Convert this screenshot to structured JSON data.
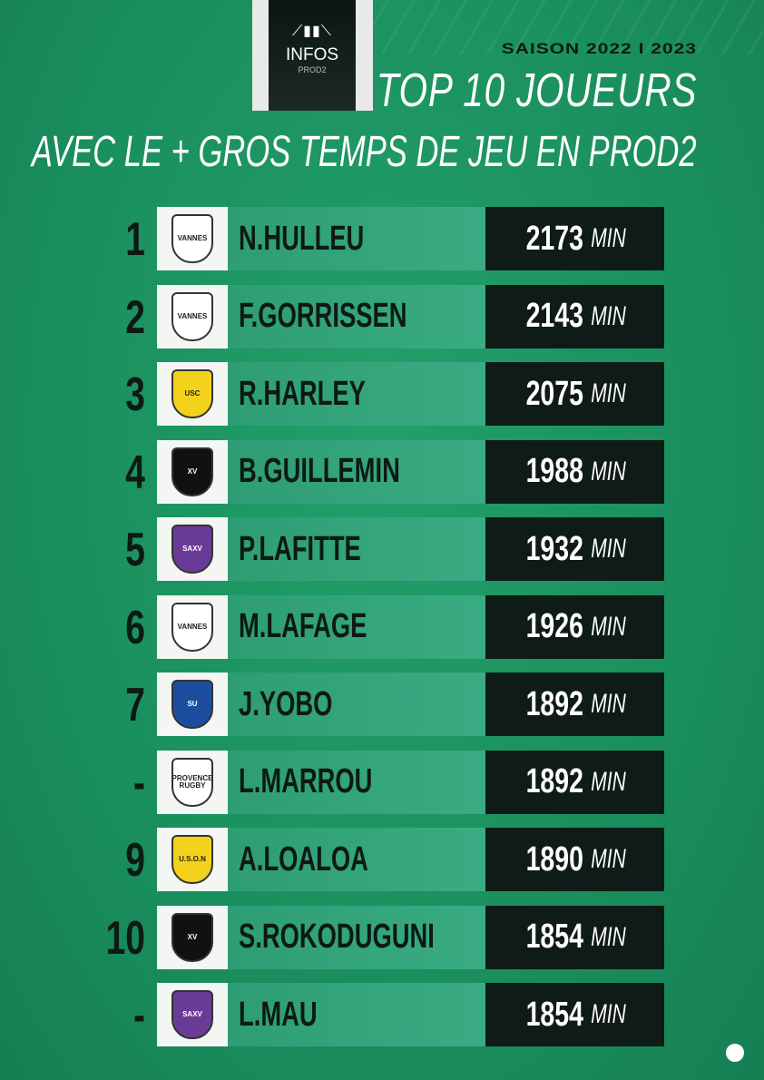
{
  "header": {
    "logo": {
      "text": "INFOS",
      "sub": "PROD2"
    },
    "season": "SAISON 2022 I 2023",
    "title": "TOP 10 JOUEURS",
    "subtitle": "AVEC LE + GROS TEMPS DE JEU EN PROD2"
  },
  "unit": "MIN",
  "rows": [
    {
      "rank": "1",
      "name": "N.HULLEU",
      "minutes": "2173",
      "club": "VANNES",
      "club_color": "#ffffff"
    },
    {
      "rank": "2",
      "name": "F.GORRISSEN",
      "minutes": "2143",
      "club": "VANNES",
      "club_color": "#ffffff"
    },
    {
      "rank": "3",
      "name": "R.HARLEY",
      "minutes": "2075",
      "club": "USC",
      "club_color": "#f2d21b"
    },
    {
      "rank": "4",
      "name": "B.GUILLEMIN",
      "minutes": "1988",
      "club": "XV",
      "club_color": "#111111"
    },
    {
      "rank": "5",
      "name": "P.LAFITTE",
      "minutes": "1932",
      "club": "SAXV",
      "club_color": "#6a3b96"
    },
    {
      "rank": "6",
      "name": "M.LAFAGE",
      "minutes": "1926",
      "club": "VANNES",
      "club_color": "#ffffff"
    },
    {
      "rank": "7",
      "name": "J.YOBO",
      "minutes": "1892",
      "club": "SU",
      "club_color": "#1c4ea0"
    },
    {
      "rank": "-",
      "name": "L.MARROU",
      "minutes": "1892",
      "club": "PROVENCE RUGBY",
      "club_color": "#ffffff"
    },
    {
      "rank": "9",
      "name": "A.LOALOA",
      "minutes": "1890",
      "club": "U.S.O.N",
      "club_color": "#f2d21b"
    },
    {
      "rank": "10",
      "name": "S.ROKODUGUNI",
      "minutes": "1854",
      "club": "XV",
      "club_color": "#111111"
    },
    {
      "rank": "-",
      "name": "L.MAU",
      "minutes": "1854",
      "club": "SAXV",
      "club_color": "#6a3b96"
    }
  ]
}
